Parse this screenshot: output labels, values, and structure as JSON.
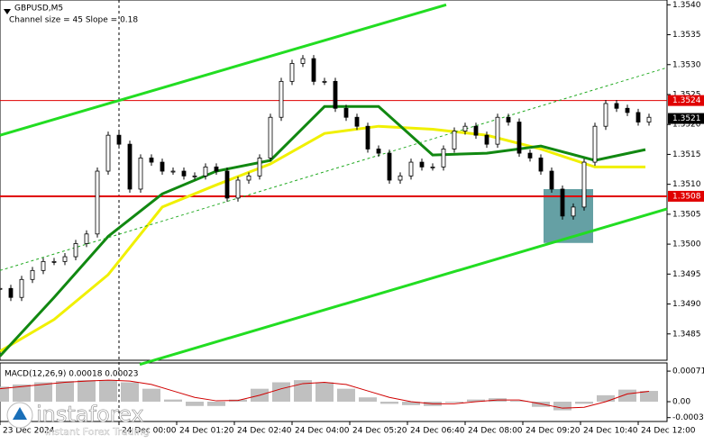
{
  "chart_data": {
    "type": "candlestick",
    "title": "GBPUSD,M5",
    "subtitle": "Channel size = 45 Slope = 0.18",
    "x": [
      -33,
      -30,
      -27,
      -24,
      -21,
      -18,
      -15,
      -12,
      -9,
      -6,
      -3,
      0,
      3,
      6,
      9,
      12,
      15,
      18,
      21,
      24,
      27,
      30,
      33,
      36,
      39,
      42,
      45,
      48,
      51,
      54,
      57,
      60,
      63,
      66,
      69,
      72,
      75,
      78,
      81,
      84,
      87,
      90,
      93,
      96,
      99,
      102,
      105,
      108,
      111,
      114,
      117,
      120,
      123,
      126,
      129,
      132,
      135,
      138,
      141,
      144,
      147
    ],
    "values": [
      1.34926,
      1.34911,
      1.34941,
      1.34956,
      1.34971,
      1.34971,
      1.34979,
      1.35001,
      1.35017,
      1.35122,
      1.35182,
      1.35167,
      1.35092,
      1.35144,
      1.35137,
      1.35122,
      1.35122,
      1.35114,
      1.35114,
      1.35129,
      1.35122,
      1.35077,
      1.35107,
      1.35114,
      1.35144,
      1.35212,
      1.35272,
      1.35302,
      1.3531,
      1.35272,
      1.35272,
      1.35227,
      1.35212,
      1.35197,
      1.35159,
      1.35152,
      1.35107,
      1.35114,
      1.35137,
      1.35129,
      1.35129,
      1.35159,
      1.35189,
      1.35197,
      1.35182,
      1.35167,
      1.35212,
      1.35204,
      1.35152,
      1.35144,
      1.35122,
      1.35092,
      1.35047,
      1.35062,
      1.35137,
      1.35197,
      1.35235,
      1.35227,
      1.3522,
      1.35204,
      1.35212
    ],
    "series": [
      {
        "color": "#f0f000",
        "x": [
          -33,
          -18,
          -3,
          12,
          27,
          42,
          57,
          72,
          87,
          102,
          117,
          132,
          146
        ],
        "values": [
          1.34821,
          1.34874,
          1.34949,
          1.35062,
          1.35099,
          1.35134,
          1.35185,
          1.35197,
          1.35192,
          1.35182,
          1.35159,
          1.35129,
          1.35129
        ]
      },
      {
        "color": "#118811",
        "x": [
          -33,
          -18,
          -3,
          12,
          27,
          42,
          57,
          72,
          87,
          102,
          117,
          132,
          146
        ],
        "values": [
          1.34813,
          1.34911,
          1.35013,
          1.35084,
          1.35122,
          1.3514,
          1.3523,
          1.3523,
          1.35149,
          1.35152,
          1.35164,
          1.3514,
          1.35158
        ]
      },
      {
        "color": "#22dd22",
        "x": [
          -33,
          90.75
        ],
        "values": [
          1.35182,
          1.354
        ]
      },
      {
        "color": "#22dd22",
        "x": [
          5.75,
          152
        ],
        "values": [
          1.34799,
          1.35059
        ]
      },
      {
        "color": "#22aa22",
        "x": [
          -33,
          152
        ],
        "values": [
          1.34956,
          1.35295
        ]
      }
    ],
    "levels": [
      {
        "value": 1.3524,
        "label": "1.3524",
        "color": "#e00000"
      },
      {
        "value": 1.3508,
        "label": "1.3508",
        "color": "#e00000"
      },
      {
        "value": 1.3521,
        "label": "1.3521",
        "color": "#000000"
      }
    ],
    "box": {
      "x": [
        117.75,
        131.5
      ],
      "values": [
        1.35002,
        1.35092
      ],
      "color": "#4a8f94"
    },
    "day_separator": 0,
    "xlim": [
      -33,
      152
    ],
    "ylim": [
      1.34806,
      1.35408
    ],
    "yticks": [
      {
        "value": 1.354,
        "label": "1.3540"
      },
      {
        "value": 1.3535,
        "label": "1.3535"
      },
      {
        "value": 1.353,
        "label": "1.3530"
      },
      {
        "value": 1.3525,
        "label": "1.3525"
      },
      {
        "value": 1.352,
        "label": "1.3520"
      },
      {
        "value": 1.3515,
        "label": "1.3515"
      },
      {
        "value": 1.351,
        "label": "1.3510"
      },
      {
        "value": 1.3505,
        "label": "1.3505"
      },
      {
        "value": 1.35,
        "label": "1.3500"
      },
      {
        "value": 1.3495,
        "label": "1.3495"
      },
      {
        "value": 1.349,
        "label": "1.3490"
      },
      {
        "value": 1.3485,
        "label": "1.3485"
      }
    ],
    "xticks": [
      {
        "value": -33,
        "label": "23 Dec 2024"
      },
      {
        "value": 0,
        "label": "24 Dec 00:00"
      },
      {
        "value": 16,
        "label": "24 Dec 01:20"
      },
      {
        "value": 32,
        "label": "24 Dec 02:40"
      },
      {
        "value": 48,
        "label": "24 Dec 04:00"
      },
      {
        "value": 64,
        "label": "24 Dec 05:20"
      },
      {
        "value": 80,
        "label": "24 Dec 06:40"
      },
      {
        "value": 96,
        "label": "24 Dec 08:00"
      },
      {
        "value": 112,
        "label": "24 Dec 09:20"
      },
      {
        "value": 128,
        "label": "24 Dec 10:40"
      },
      {
        "value": 144,
        "label": "24 Dec 12:00"
      }
    ],
    "macd": {
      "label": "MACD(12,26,9) 0.00018 0.00023",
      "x": [
        -33,
        -27,
        -21,
        -15,
        -9,
        -3,
        3,
        9,
        15,
        21,
        27,
        33,
        39,
        45,
        51,
        57,
        63,
        69,
        75,
        81,
        87,
        93,
        99,
        105,
        111,
        117,
        123,
        129,
        135,
        141,
        147
      ],
      "values": [
        0.00035,
        0.0004,
        0.00045,
        0.00048,
        0.0005,
        0.0005,
        0.00045,
        0.0003,
        5e-05,
        -0.0001,
        -0.0001,
        5e-05,
        0.0003,
        0.00045,
        0.0005,
        0.00045,
        0.0003,
        0.0001,
        -5e-05,
        -8e-05,
        -0.0001,
        -2e-05,
        5e-05,
        8e-05,
        2e-05,
        -0.00012,
        -0.0002,
        -5e-05,
        0.00015,
        0.00028,
        0.00025
      ],
      "signal": [
        0.0003,
        0.00035,
        0.0004,
        0.00045,
        0.00048,
        0.0005,
        0.00048,
        0.0004,
        0.00025,
        0.0001,
        2e-05,
        3e-05,
        0.00015,
        0.0003,
        0.00042,
        0.00045,
        0.0004,
        0.00025,
        0.0001,
        0,
        -5e-05,
        -5e-05,
        0,
        4e-05,
        4e-05,
        -5e-05,
        -0.00015,
        -0.00013,
        0,
        0.00018,
        0.00024
      ],
      "ylim": [
        -0.00046,
        0.0009
      ],
      "yticks": [
        {
          "value": 0.00071,
          "label": "0.00071"
        },
        {
          "value": 0,
          "label": "0.00"
        },
        {
          "value": -0.00037,
          "label": "-0.00037"
        }
      ]
    },
    "watermark": {
      "brand": "instaforex",
      "tagline": "Instant Forex Trading"
    }
  }
}
